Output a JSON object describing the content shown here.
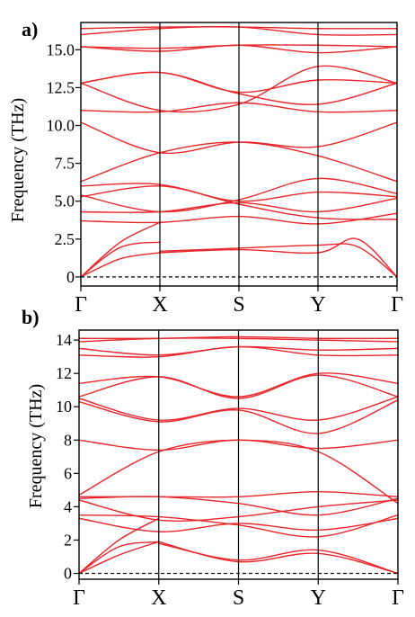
{
  "chart_data": [
    {
      "type": "line",
      "panel_label": "a)",
      "ylabel": "Frequency (THz)",
      "ylim": [
        -0.6,
        16.8
      ],
      "yticks": [
        0,
        2.5,
        5.0,
        7.5,
        10.0,
        12.5,
        15.0
      ],
      "ytick_labels": [
        "0",
        "2.5",
        "5.0",
        "7.5",
        "10.0",
        "12.5",
        "15.0"
      ],
      "x_points": [
        0,
        1,
        2,
        3,
        4
      ],
      "x_labels": [
        "Γ",
        "X",
        "S",
        "Y",
        "Γ"
      ],
      "zero_line": "dashed",
      "band_color": "#e8262b",
      "series": [
        {
          "values": [
            [
              0,
              0
            ],
            [
              0.5,
              1.95
            ],
            [
              1,
              2.3
            ]
          ]
        },
        {
          "values": [
            [
              0,
              0
            ],
            [
              0.5,
              1.2
            ],
            [
              1,
              1.6
            ]
          ]
        },
        {
          "values": [
            [
              1,
              1.7
            ],
            [
              2,
              1.9
            ],
            [
              3,
              2.1
            ],
            [
              3.5,
              2.0
            ],
            [
              4,
              0
            ]
          ]
        },
        {
          "values": [
            [
              1,
              1.6
            ],
            [
              2,
              1.8
            ],
            [
              3,
              1.6
            ],
            [
              3.5,
              2.5
            ],
            [
              4,
              0
            ]
          ]
        },
        {
          "values": [
            [
              0,
              0
            ],
            [
              0.5,
              2.3
            ],
            [
              1,
              3.6
            ]
          ]
        },
        {
          "values": [
            [
              0,
              3.7
            ],
            [
              1,
              3.6
            ],
            [
              2,
              4.0
            ],
            [
              3,
              3.5
            ],
            [
              4,
              4.2
            ]
          ]
        },
        {
          "values": [
            [
              0,
              4.3
            ],
            [
              1,
              4.3
            ],
            [
              2,
              4.9
            ],
            [
              3,
              4.3
            ],
            [
              4,
              5.2
            ]
          ]
        },
        {
          "values": [
            [
              0,
              5.3
            ],
            [
              1,
              6.0
            ],
            [
              2,
              5.0
            ],
            [
              3,
              5.6
            ],
            [
              4,
              5.3
            ]
          ]
        },
        {
          "values": [
            [
              0,
              5.4
            ],
            [
              1,
              4.3
            ],
            [
              2,
              5.1
            ],
            [
              3,
              6.5
            ],
            [
              4,
              5.5
            ]
          ]
        },
        {
          "values": [
            [
              0,
              6.0
            ],
            [
              1,
              6.1
            ],
            [
              2,
              4.8
            ],
            [
              3,
              3.9
            ],
            [
              4,
              3.8
            ]
          ]
        },
        {
          "values": [
            [
              0,
              6.3
            ],
            [
              1,
              8.2
            ],
            [
              2,
              8.9
            ],
            [
              3,
              8.0
            ],
            [
              4,
              6.3
            ]
          ]
        },
        {
          "values": [
            [
              0,
              10.2
            ],
            [
              1,
              8.2
            ],
            [
              2,
              8.9
            ],
            [
              3,
              8.6
            ],
            [
              4,
              10.2
            ]
          ]
        },
        {
          "values": [
            [
              0,
              11.0
            ],
            [
              1,
              10.9
            ],
            [
              2,
              11.5
            ],
            [
              3,
              10.9
            ],
            [
              4,
              11.0
            ]
          ]
        },
        {
          "values": [
            [
              0,
              12.8
            ],
            [
              1,
              13.5
            ],
            [
              2,
              12.1
            ],
            [
              3,
              11.4
            ],
            [
              4,
              12.8
            ]
          ]
        },
        {
          "values": [
            [
              0,
              12.8
            ],
            [
              1,
              13.5
            ],
            [
              2,
              12.2
            ],
            [
              3,
              13.0
            ],
            [
              4,
              12.8
            ]
          ]
        },
        {
          "values": [
            [
              0,
              12.8
            ],
            [
              1,
              11.0
            ],
            [
              2,
              11.4
            ],
            [
              3,
              13.9
            ],
            [
              4,
              12.8
            ]
          ]
        },
        {
          "values": [
            [
              0,
              15.2
            ],
            [
              1,
              14.9
            ],
            [
              2,
              15.3
            ],
            [
              3,
              14.8
            ],
            [
              4,
              15.2
            ]
          ]
        },
        {
          "values": [
            [
              0,
              15.2
            ],
            [
              1,
              15.1
            ],
            [
              2,
              15.3
            ],
            [
              3,
              15.3
            ],
            [
              4,
              15.2
            ]
          ]
        },
        {
          "values": [
            [
              0,
              16.0
            ],
            [
              1,
              16.4
            ],
            [
              2,
              16.5
            ],
            [
              3,
              16.0
            ],
            [
              4,
              16.0
            ]
          ]
        },
        {
          "values": [
            [
              0,
              16.4
            ],
            [
              1,
              16.5
            ],
            [
              2,
              16.5
            ],
            [
              3,
              16.4
            ],
            [
              4,
              16.4
            ]
          ]
        }
      ]
    },
    {
      "type": "line",
      "panel_label": "b)",
      "ylabel": "Frequency (THz)",
      "ylim": [
        -0.35,
        14.6
      ],
      "yticks": [
        0,
        2,
        4,
        6,
        8,
        10,
        12,
        14
      ],
      "ytick_labels": [
        "0",
        "2",
        "4",
        "6",
        "8",
        "10",
        "12",
        "14"
      ],
      "x_points": [
        0,
        1,
        2,
        3,
        4
      ],
      "x_labels": [
        "Γ",
        "X",
        "S",
        "Y",
        "Γ"
      ],
      "zero_line": "dashed",
      "band_color": "#e8262b",
      "series": [
        {
          "values": [
            [
              0,
              0
            ],
            [
              0.5,
              1.6
            ],
            [
              1,
              1.9
            ]
          ]
        },
        {
          "values": [
            [
              0,
              0
            ],
            [
              0.5,
              1.1
            ],
            [
              1,
              1.9
            ]
          ]
        },
        {
          "values": [
            [
              1,
              1.9
            ],
            [
              2,
              0.7
            ],
            [
              3,
              1.2
            ],
            [
              4,
              0
            ]
          ]
        },
        {
          "values": [
            [
              1,
              1.8
            ],
            [
              2,
              0.8
            ],
            [
              3,
              1.4
            ],
            [
              4,
              0
            ]
          ]
        },
        {
          "values": [
            [
              0,
              0
            ],
            [
              0.5,
              2.0
            ],
            [
              1,
              3.3
            ]
          ]
        },
        {
          "values": [
            [
              0,
              3.3
            ],
            [
              1,
              2.5
            ],
            [
              2,
              3.0
            ],
            [
              3,
              2.6
            ],
            [
              4,
              3.3
            ]
          ]
        },
        {
          "values": [
            [
              0,
              3.5
            ],
            [
              1,
              3.4
            ],
            [
              2,
              2.9
            ],
            [
              3,
              2.2
            ],
            [
              4,
              3.5
            ]
          ]
        },
        {
          "values": [
            [
              0,
              4.4
            ],
            [
              1,
              3.2
            ],
            [
              2,
              3.4
            ],
            [
              3,
              4.0
            ],
            [
              4,
              4.4
            ]
          ]
        },
        {
          "values": [
            [
              0,
              4.5
            ],
            [
              1,
              4.6
            ],
            [
              2,
              4.2
            ],
            [
              3,
              3.5
            ],
            [
              4,
              4.5
            ]
          ]
        },
        {
          "values": [
            [
              0,
              4.6
            ],
            [
              1,
              4.6
            ],
            [
              2,
              4.6
            ],
            [
              3,
              4.9
            ],
            [
              4,
              4.6
            ]
          ]
        },
        {
          "values": [
            [
              0,
              4.7
            ],
            [
              1,
              7.3
            ],
            [
              2,
              8.0
            ],
            [
              3,
              7.5
            ],
            [
              4,
              8.0
            ]
          ]
        },
        {
          "values": [
            [
              0,
              8.0
            ],
            [
              1,
              7.4
            ],
            [
              2,
              8.0
            ],
            [
              3,
              7.3
            ],
            [
              4,
              4.2
            ]
          ]
        },
        {
          "values": [
            [
              0,
              10.3
            ],
            [
              1,
              9.1
            ],
            [
              2,
              9.8
            ],
            [
              3,
              8.4
            ],
            [
              4,
              10.4
            ]
          ]
        },
        {
          "values": [
            [
              0,
              10.5
            ],
            [
              1,
              9.2
            ],
            [
              2,
              9.9
            ],
            [
              3,
              9.2
            ],
            [
              4,
              10.6
            ]
          ]
        },
        {
          "values": [
            [
              0,
              10.6
            ],
            [
              1,
              11.8
            ],
            [
              2,
              10.5
            ],
            [
              3,
              11.9
            ],
            [
              4,
              10.6
            ]
          ]
        },
        {
          "values": [
            [
              0,
              11.4
            ],
            [
              1,
              11.8
            ],
            [
              2,
              10.6
            ],
            [
              3,
              12.0
            ],
            [
              4,
              11.4
            ]
          ]
        },
        {
          "values": [
            [
              0,
              13.1
            ],
            [
              1,
              13.0
            ],
            [
              2,
              13.6
            ],
            [
              3,
              13.1
            ],
            [
              4,
              13.1
            ]
          ]
        },
        {
          "values": [
            [
              0,
              13.5
            ],
            [
              1,
              13.1
            ],
            [
              2,
              13.6
            ],
            [
              3,
              13.4
            ],
            [
              4,
              13.5
            ]
          ]
        },
        {
          "values": [
            [
              0,
              13.9
            ],
            [
              1,
              14.1
            ],
            [
              2,
              14.1
            ],
            [
              3,
              14.0
            ],
            [
              4,
              13.9
            ]
          ]
        },
        {
          "values": [
            [
              0,
              14.1
            ],
            [
              1,
              14.1
            ],
            [
              2,
              14.2
            ],
            [
              3,
              14.1
            ],
            [
              4,
              14.1
            ]
          ]
        }
      ]
    }
  ]
}
